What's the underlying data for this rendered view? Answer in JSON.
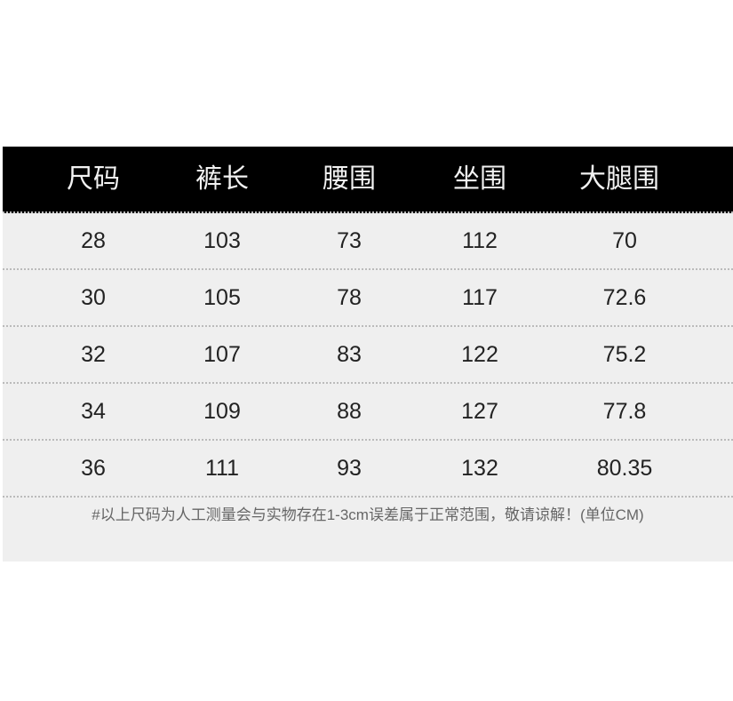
{
  "table": {
    "headers": [
      "尺码",
      "裤长",
      "腰围",
      "坐围",
      "大腿围"
    ],
    "rows": [
      [
        "28",
        "103",
        "73",
        "112",
        "70"
      ],
      [
        "30",
        "105",
        "78",
        "117",
        "72.6"
      ],
      [
        "32",
        "107",
        "83",
        "122",
        "75.2"
      ],
      [
        "34",
        "109",
        "88",
        "127",
        "77.8"
      ],
      [
        "36",
        "111",
        "93",
        "132",
        "80.35"
      ]
    ]
  },
  "note": "#以上尺码为人工测量会与实物存在1-3cm误差属于正常范围，敬请谅解！(单位CM)",
  "colors": {
    "header_bg": "#000000",
    "header_text": "#f2f2f2",
    "body_bg": "#efefef"
  }
}
